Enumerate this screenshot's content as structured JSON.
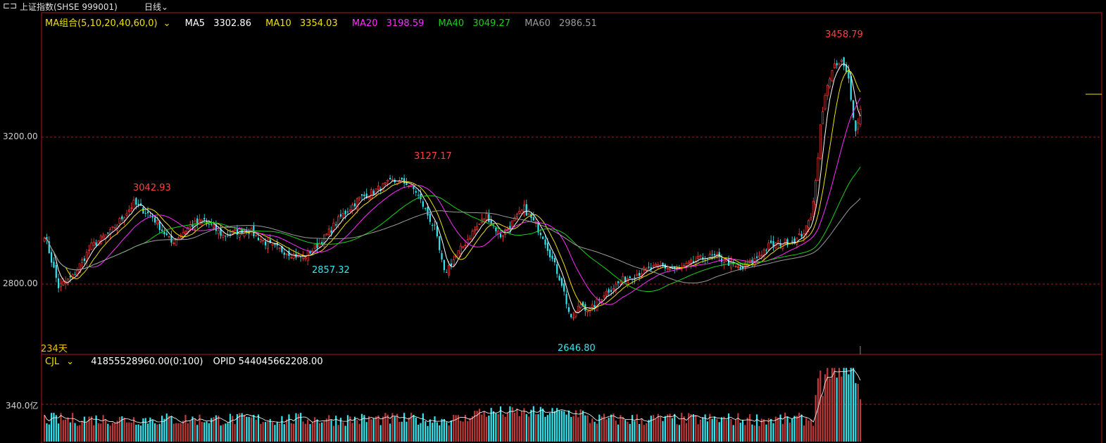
{
  "header": {
    "title": "上证指数(SHSE 999001)",
    "period": "日线"
  },
  "ma_legend": {
    "group": "MA组合(5,10,20,40,60,0)",
    "items": [
      {
        "label": "MA5",
        "value": "3302.86",
        "color": "#ffffff"
      },
      {
        "label": "MA10",
        "value": "3354.03",
        "color": "#f0e000"
      },
      {
        "label": "MA20",
        "value": "3198.59",
        "color": "#ff2bff"
      },
      {
        "label": "MA40",
        "value": "3049.27",
        "color": "#19d219"
      },
      {
        "label": "MA60",
        "value": "2986.51",
        "color": "#9a9a9a"
      }
    ]
  },
  "vol_legend": {
    "name": "CJL",
    "value": "41855528960.00(0:100)",
    "opid": "OPID 544045662208.00"
  },
  "days_label": "234天",
  "annotations": {
    "high": "3458.79",
    "h2": "3127.17",
    "h3": "3042.93",
    "l1": "2857.32",
    "l2": "2646.80"
  },
  "colors": {
    "up": "#ff3b3b",
    "down": "#32e6f0",
    "grid": "#b01818",
    "border": "#b01818"
  },
  "chart_data": {
    "type": "candlestick",
    "y_ticks": [
      "3200.00",
      "2800.00"
    ],
    "vol_tick": "340.0亿",
    "anchors": [
      [
        0,
        2935
      ],
      [
        6,
        2780
      ],
      [
        12,
        2810
      ],
      [
        20,
        2900
      ],
      [
        28,
        2940
      ],
      [
        38,
        3025
      ],
      [
        46,
        2985
      ],
      [
        54,
        2910
      ],
      [
        62,
        2960
      ],
      [
        68,
        2975
      ],
      [
        76,
        2930
      ],
      [
        86,
        2950
      ],
      [
        96,
        2900
      ],
      [
        104,
        2880
      ],
      [
        110,
        2865
      ],
      [
        118,
        2915
      ],
      [
        126,
        2985
      ],
      [
        134,
        3040
      ],
      [
        140,
        3060
      ],
      [
        148,
        3090
      ],
      [
        154,
        3085
      ],
      [
        158,
        3060
      ],
      [
        166,
        2950
      ],
      [
        170,
        2820
      ],
      [
        176,
        2880
      ],
      [
        182,
        2940
      ],
      [
        188,
        2990
      ],
      [
        194,
        2930
      ],
      [
        198,
        2960
      ],
      [
        204,
        3010
      ],
      [
        208,
        2970
      ],
      [
        212,
        2930
      ],
      [
        216,
        2860
      ],
      [
        220,
        2790
      ],
      [
        224,
        2680
      ],
      [
        228,
        2730
      ],
      [
        232,
        2710
      ],
      [
        238,
        2760
      ],
      [
        246,
        2800
      ],
      [
        254,
        2825
      ],
      [
        262,
        2840
      ],
      [
        270,
        2830
      ],
      [
        278,
        2860
      ],
      [
        284,
        2870
      ],
      [
        290,
        2855
      ],
      [
        296,
        2830
      ],
      [
        302,
        2860
      ],
      [
        308,
        2900
      ],
      [
        314,
        2910
      ],
      [
        320,
        2920
      ],
      [
        324,
        2950
      ],
      [
        326,
        2990
      ],
      [
        328,
        3090
      ],
      [
        330,
        3250
      ],
      [
        333,
        3380
      ],
      [
        336,
        3425
      ],
      [
        339,
        3440
      ],
      [
        342,
        3390
      ],
      [
        345,
        3235
      ],
      [
        347,
        3300
      ]
    ],
    "ma_periods": [
      5,
      10,
      20,
      40,
      60
    ],
    "price_range": [
      2590,
      3540
    ],
    "volume_range_yi": [
      0,
      680
    ]
  }
}
